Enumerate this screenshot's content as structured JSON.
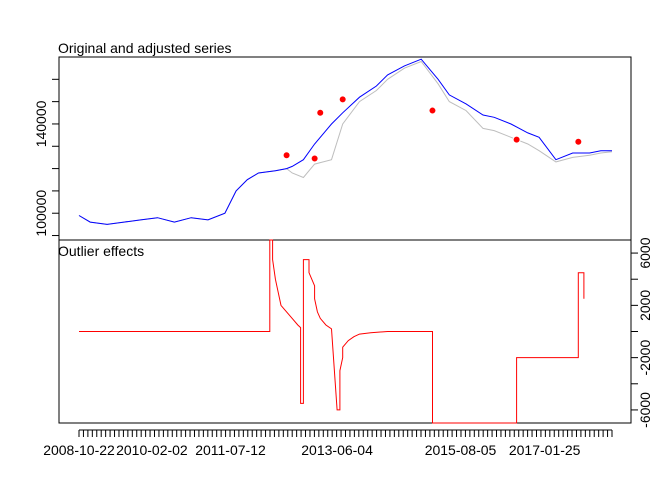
{
  "chart_data": [
    {
      "type": "line",
      "title": "Original and adjusted series",
      "xlabel": "",
      "ylabel": "",
      "y_ticks": [
        100000,
        140000
      ],
      "y_tick_labels": [
        "100000",
        "140000"
      ],
      "ylim": [
        88000,
        170000
      ],
      "series": [
        {
          "role": "original",
          "color": "#bebebe",
          "x": [
            2008.8,
            2009.0,
            2009.3,
            2009.6,
            2009.9,
            2010.2,
            2010.5,
            2010.8,
            2011.1,
            2011.4,
            2011.6,
            2011.8,
            2012.0,
            2012.3,
            2012.5,
            2012.6,
            2012.8,
            2013.0,
            2013.3,
            2013.5,
            2013.8,
            2014.1,
            2014.3,
            2014.6,
            2014.9,
            2015.2,
            2015.4,
            2015.7,
            2016.0,
            2016.2,
            2016.5,
            2016.8,
            2017.0,
            2017.3,
            2017.6,
            2017.9,
            2018.1,
            2018.3
          ],
          "values": [
            99000,
            96000,
            95000,
            96000,
            97000,
            98000,
            96000,
            98000,
            97000,
            100000,
            110000,
            115000,
            118000,
            119000,
            120000,
            118000,
            116000,
            122000,
            124000,
            140000,
            150000,
            155000,
            160000,
            165000,
            168000,
            158000,
            150000,
            146000,
            138000,
            137000,
            134000,
            131000,
            128000,
            123000,
            125000,
            126000,
            127000,
            127500
          ]
        },
        {
          "role": "adjusted",
          "color": "#0000ff",
          "x": [
            2008.8,
            2009.0,
            2009.3,
            2009.6,
            2009.9,
            2010.2,
            2010.5,
            2010.8,
            2011.1,
            2011.4,
            2011.6,
            2011.8,
            2012.0,
            2012.3,
            2012.5,
            2012.6,
            2012.8,
            2013.0,
            2013.3,
            2013.5,
            2013.8,
            2014.1,
            2014.3,
            2014.6,
            2014.9,
            2015.2,
            2015.4,
            2015.7,
            2016.0,
            2016.2,
            2016.5,
            2016.8,
            2017.0,
            2017.3,
            2017.6,
            2017.9,
            2018.1,
            2018.3
          ],
          "values": [
            99000,
            96000,
            95000,
            96000,
            97000,
            98000,
            96000,
            98000,
            97000,
            100000,
            110000,
            115000,
            118000,
            119000,
            120000,
            121000,
            124000,
            131000,
            140000,
            145000,
            152000,
            157000,
            162000,
            166000,
            169000,
            160000,
            153000,
            149000,
            144000,
            143000,
            140000,
            136000,
            134000,
            124000,
            127000,
            127000,
            128000,
            128000
          ]
        }
      ],
      "outliers": {
        "color": "#ff0000",
        "x": [
          2012.5,
          2013.0,
          2013.1,
          2013.5,
          2015.1,
          2016.6,
          2017.7
        ],
        "values": [
          126000,
          124500,
          145000,
          151000,
          146000,
          133000,
          132000
        ]
      }
    },
    {
      "type": "line",
      "title": "Outlier effects",
      "xlabel": "",
      "ylabel": "",
      "color": "#ff0000",
      "y_ticks": [
        -6000,
        -2000,
        2000,
        6000
      ],
      "y_tick_labels": [
        "-6000",
        "-2000",
        "2000",
        "6000"
      ],
      "ylim": [
        -7000,
        7000
      ],
      "x": [
        2008.8,
        2012.2,
        2012.2,
        2012.25,
        2012.25,
        2012.3,
        2012.35,
        2012.4,
        2012.5,
        2012.6,
        2012.7,
        2012.75,
        2012.75,
        2012.8,
        2012.8,
        2012.9,
        2012.9,
        2013.0,
        2013.0,
        2013.05,
        2013.1,
        2013.2,
        2013.3,
        2013.4,
        2013.45,
        2013.45,
        2013.5,
        2013.5,
        2013.6,
        2013.7,
        2013.8,
        2014.0,
        2014.3,
        2014.6,
        2014.9,
        2015.1,
        2015.1,
        2016.6,
        2016.6,
        2017.7,
        2017.7,
        2017.8,
        2017.8
      ],
      "values": [
        0,
        0,
        7000,
        7000,
        5500,
        4000,
        3000,
        2000,
        1500,
        1000,
        500,
        300,
        -5500,
        -5500,
        5500,
        5500,
        4500,
        3500,
        2500,
        1500,
        1000,
        500,
        200,
        -6000,
        -6000,
        -3000,
        -2000,
        -1200,
        -700,
        -400,
        -200,
        -100,
        0,
        0,
        0,
        0,
        -7000,
        -7000,
        -2000,
        -2000,
        4500,
        4500,
        2500
      ]
    }
  ],
  "x_axis": {
    "tick_labels": [
      "2008-10-22",
      "2010-02-02",
      "2011-07-12",
      "2013-06-04",
      "2015-08-05",
      "2017-01-25"
    ],
    "tick_positions": [
      2008.8,
      2010.1,
      2011.5,
      2013.4,
      2015.6,
      2017.1
    ]
  }
}
